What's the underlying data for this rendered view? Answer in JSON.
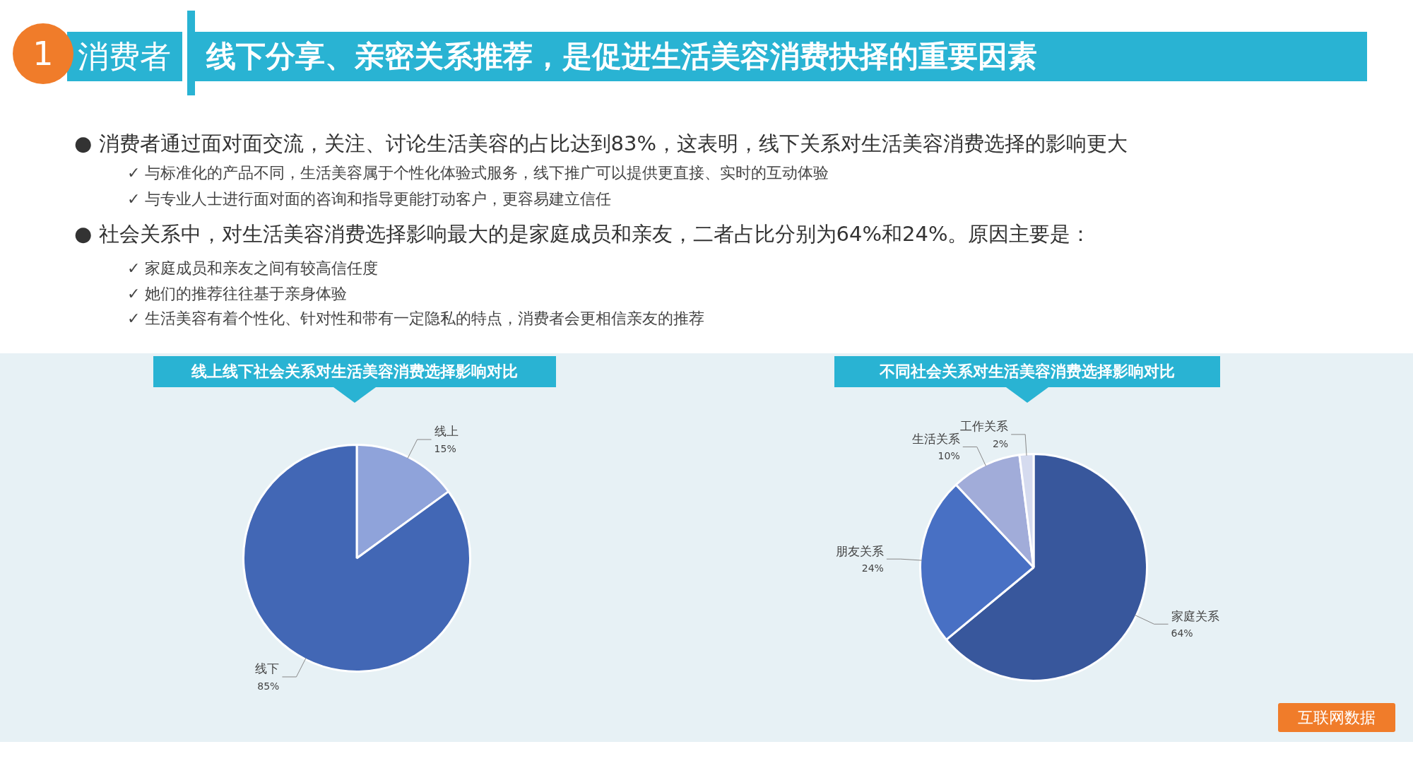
{
  "chart_data": [
    {
      "type": "other",
      "title": "线下分享、亲密关系推荐，是促进生活美容消费抉择的重要因素",
      "subtitle": "消费者",
      "annotations": [
        "1",
        "● 消费者通过面对面交流，关注、讨论生活美容的占比达到83%，这表明，线下关系对生活美容消费选择的影响更大",
        "✓ 与标准化的产品不同，生活美容属于个性化体验式服务，线下推广可以提供更直接、实时的互动体验",
        "✓ 与专业人士进行面对面的咨询和指导更能打动客户，更容易建立信任",
        "● 社会关系中，对生活美容消费选择影响最大的是家庭成员和亲友，二者占比分别为64%和24%。原因主要是：",
        "✓ 家庭成员和亲友之间有较高信任度",
        "✓ 她们的推荐往往基于亲身体验",
        "✓ 生活美容有着个性化、针对性和带有一定隐私的特点，消费者会更相信亲友的推荐",
        "互联网数据"
      ]
    },
    {
      "type": "pie",
      "title": "线上线下社会关系对生活美容消费选择影响对比",
      "categories": [
        "线上",
        "线下"
      ],
      "values": [
        15,
        85
      ],
      "colors": [
        "#8fa3da",
        "#4267b5"
      ],
      "value_labels": [
        "15%",
        "85%"
      ]
    },
    {
      "type": "pie",
      "title": "不同社会关系对生活美容消费选择影响对比",
      "categories": [
        "家庭关系",
        "朋友关系",
        "生活关系",
        "工作关系"
      ],
      "values": [
        64,
        24,
        10,
        2
      ],
      "colors": [
        "#38579c",
        "#4870c4",
        "#a1acd9",
        "#d5dbef"
      ],
      "value_labels": [
        "64%",
        "24%",
        "10%",
        "2%"
      ]
    }
  ]
}
